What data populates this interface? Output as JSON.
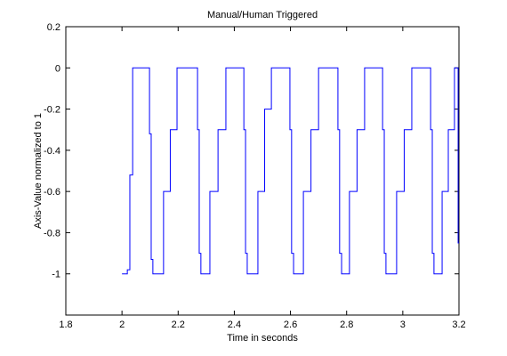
{
  "chart_data": {
    "type": "line",
    "title": "Manual/Human Triggered",
    "xlabel": "Time in seconds",
    "ylabel": "Axis-Value normalized to 1",
    "xlim": [
      1.8,
      3.2
    ],
    "ylim": [
      -1.2,
      0.2
    ],
    "xticks": [
      1.8,
      2,
      2.2,
      2.4,
      2.6,
      2.8,
      3,
      3.2
    ],
    "yticks": [
      0.2,
      0,
      -0.2,
      -0.4,
      -0.6,
      -0.8,
      -1
    ],
    "grid": false,
    "series": [
      {
        "color": "#0000ff",
        "x": [
          2.0,
          2.019,
          2.019,
          2.028,
          2.028,
          2.038,
          2.038,
          2.098,
          2.098,
          2.104,
          2.104,
          2.11,
          2.11,
          2.148,
          2.148,
          2.172,
          2.172,
          2.196,
          2.196,
          2.269,
          2.269,
          2.275,
          2.275,
          2.281,
          2.281,
          2.313,
          2.313,
          2.342,
          2.342,
          2.37,
          2.37,
          2.434,
          2.434,
          2.44,
          2.44,
          2.446,
          2.446,
          2.484,
          2.484,
          2.508,
          2.508,
          2.532,
          2.532,
          2.598,
          2.598,
          2.604,
          2.604,
          2.611,
          2.611,
          2.646,
          2.646,
          2.673,
          2.673,
          2.7,
          2.7,
          2.769,
          2.769,
          2.775,
          2.775,
          2.782,
          2.782,
          2.81,
          2.81,
          2.837,
          2.837,
          2.864,
          2.864,
          2.928,
          2.928,
          2.934,
          2.934,
          2.94,
          2.94,
          2.978,
          2.978,
          3.005,
          3.005,
          3.032,
          3.032,
          3.099,
          3.099,
          3.105,
          3.105,
          3.111,
          3.111,
          3.14,
          3.14,
          3.162,
          3.162,
          3.184,
          3.184,
          3.197,
          3.197,
          3.2
        ],
        "values": [
          -1,
          -1,
          -0.98,
          -0.98,
          -0.52,
          -0.52,
          0,
          0,
          -0.32,
          -0.32,
          -0.93,
          -0.93,
          -1,
          -1,
          -0.6,
          -0.6,
          -0.3,
          -0.3,
          0,
          0,
          -0.3,
          -0.3,
          -0.9,
          -0.9,
          -1,
          -1,
          -0.6,
          -0.6,
          -0.3,
          -0.3,
          0,
          0,
          -0.3,
          -0.3,
          -0.9,
          -0.9,
          -1,
          -1,
          -0.6,
          -0.6,
          -0.2,
          -0.2,
          0,
          0,
          -0.3,
          -0.3,
          -0.9,
          -0.9,
          -1,
          -1,
          -0.6,
          -0.6,
          -0.3,
          -0.3,
          0,
          0,
          -0.3,
          -0.3,
          -0.9,
          -0.9,
          -1,
          -1,
          -0.6,
          -0.6,
          -0.3,
          -0.3,
          0,
          0,
          -0.3,
          -0.3,
          -0.9,
          -0.9,
          -1,
          -1,
          -0.6,
          -0.6,
          -0.3,
          -0.3,
          0,
          0,
          -0.3,
          -0.3,
          -0.9,
          -0.9,
          -1,
          -1,
          -0.6,
          -0.6,
          -0.3,
          -0.3,
          0,
          0,
          -0.85,
          -0.85
        ]
      }
    ]
  }
}
